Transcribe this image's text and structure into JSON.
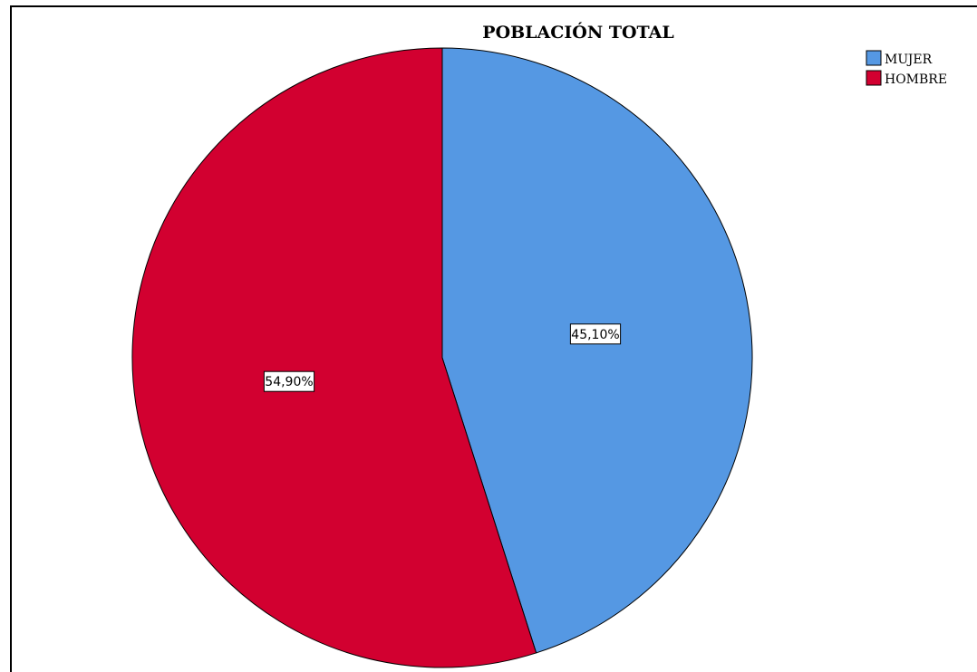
{
  "chart_data": {
    "type": "pie",
    "title": "POBLACIÓN TOTAL",
    "categories": [
      "MUJER",
      "HOMBRE"
    ],
    "values": [
      45.1,
      54.9
    ],
    "labels": [
      "45,10%",
      "54,90%"
    ],
    "colors": [
      "#5598e3",
      "#d20030"
    ],
    "start_angle_deg": 0,
    "direction": "clockwise",
    "legend_position": "top-right"
  }
}
